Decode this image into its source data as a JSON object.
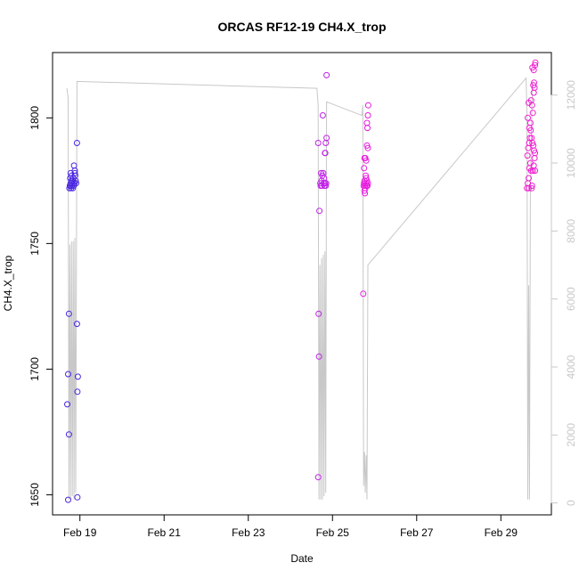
{
  "chart_data": {
    "type": "scatter",
    "title": "ORCAS RF12-19 CH4.X_trop",
    "xlabel": "Date",
    "ylabel": "CH4.X_trop",
    "x_ticks": [
      {
        "day": 19,
        "label": "Feb 19"
      },
      {
        "day": 21,
        "label": "Feb 21"
      },
      {
        "day": 23,
        "label": "Feb 23"
      },
      {
        "day": 25,
        "label": "Feb 25"
      },
      {
        "day": 27,
        "label": "Feb 27"
      },
      {
        "day": 29,
        "label": "Feb 29"
      }
    ],
    "x_range_days": [
      18.35,
      30.2
    ],
    "ylim": [
      1642,
      1826
    ],
    "y_ticks": [
      1650,
      1700,
      1750,
      1800
    ],
    "y2_ticks": [
      0,
      2000,
      4000,
      6000,
      8000,
      10000,
      12000
    ],
    "y2_lim": [
      -350,
      13250
    ],
    "grid": false,
    "altitude_color": "#c8c8c8",
    "flights": [
      {
        "color": "#4a26e0",
        "points": [
          [
            18.72,
            1648
          ],
          [
            18.74,
            1674
          ],
          [
            18.7,
            1686
          ],
          [
            18.72,
            1698
          ],
          [
            18.74,
            1722
          ],
          [
            18.94,
            1649
          ],
          [
            18.94,
            1691
          ],
          [
            18.95,
            1697
          ],
          [
            18.93,
            1718
          ],
          [
            18.93,
            1790
          ],
          [
            18.75,
            1772
          ],
          [
            18.77,
            1773
          ],
          [
            18.78,
            1774
          ],
          [
            18.76,
            1773
          ],
          [
            18.8,
            1775
          ],
          [
            18.82,
            1774
          ],
          [
            18.84,
            1776
          ],
          [
            18.86,
            1774
          ],
          [
            18.88,
            1778
          ],
          [
            18.9,
            1775
          ],
          [
            18.79,
            1772
          ],
          [
            18.81,
            1773
          ],
          [
            18.83,
            1772
          ],
          [
            18.85,
            1773
          ],
          [
            18.87,
            1774
          ],
          [
            18.89,
            1777
          ],
          [
            18.91,
            1774
          ],
          [
            18.77,
            1776
          ],
          [
            18.78,
            1778
          ],
          [
            18.86,
            1781
          ],
          [
            18.88,
            1779
          ],
          [
            18.83,
            1775
          ],
          [
            18.8,
            1777
          ]
        ]
      },
      {
        "color": "#c020e8",
        "points": [
          [
            24.66,
            1657
          ],
          [
            24.68,
            1705
          ],
          [
            24.67,
            1722
          ],
          [
            24.69,
            1763
          ],
          [
            24.66,
            1790
          ],
          [
            24.72,
            1773
          ],
          [
            24.74,
            1775
          ],
          [
            24.76,
            1777
          ],
          [
            24.78,
            1778
          ],
          [
            24.8,
            1776
          ],
          [
            24.82,
            1774
          ],
          [
            24.84,
            1773
          ],
          [
            24.71,
            1774
          ],
          [
            24.73,
            1778
          ],
          [
            24.77,
            1801
          ],
          [
            24.83,
            1786
          ],
          [
            24.84,
            1790
          ],
          [
            24.86,
            1792
          ],
          [
            24.82,
            1786
          ],
          [
            24.86,
            1817
          ],
          [
            24.75,
            1773
          ],
          [
            24.79,
            1774
          ],
          [
            24.81,
            1773
          ],
          [
            24.85,
            1774
          ]
        ]
      },
      {
        "color": "#e81ce0",
        "points": [
          [
            25.73,
            1730
          ],
          [
            25.74,
            1773
          ],
          [
            25.75,
            1774
          ],
          [
            25.76,
            1775
          ],
          [
            25.77,
            1773
          ],
          [
            25.78,
            1772
          ],
          [
            25.79,
            1774
          ],
          [
            25.8,
            1776
          ],
          [
            25.81,
            1773
          ],
          [
            25.82,
            1775
          ],
          [
            25.83,
            1773
          ],
          [
            25.84,
            1774
          ],
          [
            25.75,
            1780
          ],
          [
            25.76,
            1784
          ],
          [
            25.78,
            1784
          ],
          [
            25.8,
            1783
          ],
          [
            25.82,
            1789
          ],
          [
            25.84,
            1788
          ],
          [
            25.83,
            1796
          ],
          [
            25.82,
            1798
          ],
          [
            25.84,
            1801
          ],
          [
            25.85,
            1805
          ],
          [
            25.79,
            1777
          ],
          [
            25.77,
            1770
          ],
          [
            25.76,
            1771
          ]
        ]
      },
      {
        "color": "#f020d0",
        "points": [
          [
            29.62,
            1772
          ],
          [
            29.64,
            1774
          ],
          [
            29.66,
            1776
          ],
          [
            29.68,
            1780
          ],
          [
            29.7,
            1782
          ],
          [
            29.72,
            1779
          ],
          [
            29.74,
            1773
          ],
          [
            29.76,
            1779
          ],
          [
            29.78,
            1781
          ],
          [
            29.8,
            1784
          ],
          [
            29.63,
            1785
          ],
          [
            29.65,
            1788
          ],
          [
            29.67,
            1790
          ],
          [
            29.69,
            1792
          ],
          [
            29.71,
            1795
          ],
          [
            29.73,
            1792
          ],
          [
            29.75,
            1790
          ],
          [
            29.77,
            1789
          ],
          [
            29.79,
            1787
          ],
          [
            29.81,
            1786
          ],
          [
            29.64,
            1800
          ],
          [
            29.66,
            1806
          ],
          [
            29.72,
            1807
          ],
          [
            29.74,
            1805
          ],
          [
            29.76,
            1802
          ],
          [
            29.78,
            1810
          ],
          [
            29.77,
            1813
          ],
          [
            29.79,
            1814
          ],
          [
            29.8,
            1812
          ],
          [
            29.78,
            1819
          ],
          [
            29.81,
            1821
          ],
          [
            29.82,
            1822
          ],
          [
            29.75,
            1820
          ],
          [
            29.7,
            1798
          ],
          [
            29.68,
            1796
          ],
          [
            29.66,
            1772
          ],
          [
            29.73,
            1772
          ],
          [
            29.81,
            1779
          ]
        ]
      }
    ],
    "altitude_series": {
      "name": "",
      "segments": [
        [
          [
            18.69,
            12200
          ],
          [
            18.72,
            11900
          ],
          [
            18.74,
            100
          ],
          [
            18.76,
            7600
          ],
          [
            18.78,
            100
          ],
          [
            18.8,
            7700
          ],
          [
            18.82,
            200
          ],
          [
            18.84,
            7700
          ],
          [
            18.86,
            100
          ],
          [
            18.88,
            7800
          ],
          [
            18.9,
            300
          ],
          [
            18.92,
            7900
          ],
          [
            18.93,
            12400
          ],
          [
            24.63,
            12200
          ],
          [
            24.66,
            11700
          ],
          [
            24.68,
            100
          ],
          [
            24.7,
            7000
          ],
          [
            24.72,
            100
          ],
          [
            24.74,
            7200
          ],
          [
            24.76,
            100
          ],
          [
            24.78,
            7300
          ],
          [
            24.8,
            200
          ],
          [
            24.82,
            7400
          ],
          [
            24.84,
            300
          ],
          [
            24.86,
            11800
          ],
          [
            25.7,
            11400
          ],
          [
            25.72,
            11700
          ],
          [
            25.74,
            500
          ],
          [
            25.76,
            1500
          ],
          [
            25.78,
            300
          ],
          [
            25.8,
            1400
          ],
          [
            25.82,
            100
          ],
          [
            25.84,
            7000
          ],
          [
            29.6,
            12500
          ],
          [
            29.62,
            11500
          ],
          [
            29.64,
            100
          ],
          [
            29.66,
            6400
          ],
          [
            29.68,
            100
          ],
          [
            29.7,
            9000
          ],
          [
            29.72,
            10500
          ],
          [
            29.74,
            11800
          ],
          [
            29.76,
            12400
          ]
        ]
      ]
    }
  }
}
